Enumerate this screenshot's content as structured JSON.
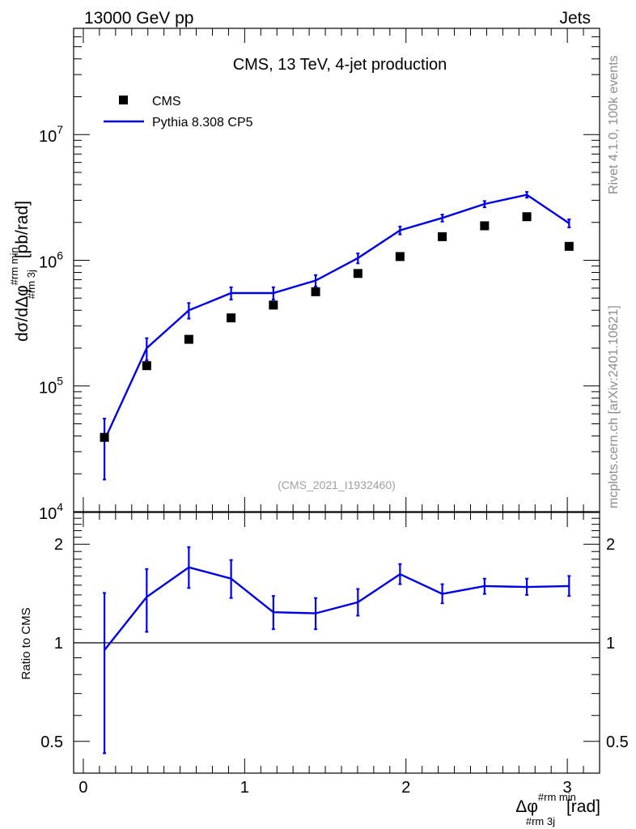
{
  "header": {
    "left": "13000 GeV pp",
    "right": "Jets"
  },
  "side": {
    "rivet": "Rivet 4.1.0,  100k events",
    "mcplots": "mcplots.cern.ch [arXiv:2401.10621]"
  },
  "colors": {
    "mc": "#0000e6",
    "data": "#000000",
    "side_text": "#8c8c8c",
    "watermark": "#a0a0a0"
  },
  "chart_data": [
    {
      "type": "scatter",
      "title": "CMS, 13 TeV, 4-jet production",
      "watermark": "(CMS_2021_I1932460)",
      "ylabel": "dσ/dΔφ^{#rm min}_{#rm 3j} [pb/rad]",
      "ylabel_parts": {
        "base": "dσ/dΔφ",
        "sup": "#rm min",
        "sub": "#rm 3j",
        "unit": "[pb/rad]"
      },
      "yscale": "log",
      "ylim": [
        10000,
        70000000
      ],
      "xlim": [
        -0.06,
        3.2
      ],
      "y_ticks": [
        {
          "value": 10000,
          "mantissa": "10",
          "exp": "4"
        },
        {
          "value": 100000,
          "mantissa": "10",
          "exp": "5"
        },
        {
          "value": 1000000,
          "mantissa": "10",
          "exp": "6"
        },
        {
          "value": 10000000,
          "mantissa": "10",
          "exp": "7"
        }
      ],
      "legend": [
        {
          "label": "CMS",
          "marker": "square"
        },
        {
          "label": "Pythia 8.308 CP5",
          "marker": "line"
        }
      ],
      "legend_position": "top-left",
      "series": [
        {
          "name": "CMS",
          "x": [
            0.131,
            0.393,
            0.654,
            0.916,
            1.178,
            1.44,
            1.702,
            1.963,
            2.225,
            2.487,
            2.749,
            3.011
          ],
          "values": [
            39000,
            145000,
            235000,
            348000,
            440000,
            562000,
            785000,
            1070000,
            1540000,
            1880000,
            2220000,
            1290000
          ]
        },
        {
          "name": "Pythia 8.308 CP5",
          "x": [
            0.131,
            0.393,
            0.654,
            0.916,
            1.178,
            1.44,
            1.702,
            1.963,
            2.225,
            2.487,
            2.749,
            3.011
          ],
          "values": [
            37000,
            200000,
            400000,
            548000,
            548000,
            690000,
            1040000,
            1730000,
            2170000,
            2800000,
            3320000,
            1970000
          ],
          "err_low": [
            19000,
            40000,
            57000,
            62000,
            62000,
            72000,
            95000,
            125000,
            140000,
            160000,
            175000,
            145000
          ],
          "err_high": [
            18000,
            40000,
            57000,
            62000,
            62000,
            72000,
            95000,
            125000,
            140000,
            160000,
            175000,
            145000
          ]
        }
      ]
    },
    {
      "type": "line",
      "ylabel": "Ratio to CMS",
      "xlabel": "Δφ^{#rm min}_{#rm 3j} [rad]",
      "xlabel_parts": {
        "base": "Δφ",
        "sup": "#rm min",
        "sub": "#rm 3j",
        "unit": "[rad]"
      },
      "yscale": "log",
      "ylim": [
        0.4,
        2.5
      ],
      "xlim": [
        -0.06,
        3.2
      ],
      "x_ticks": [
        {
          "value": 0,
          "label": "0"
        },
        {
          "value": 1,
          "label": "1"
        },
        {
          "value": 2,
          "label": "2"
        },
        {
          "value": 3,
          "label": "3"
        }
      ],
      "y_ticks": [
        {
          "value": 0.5,
          "label": "0.5"
        },
        {
          "value": 1,
          "label": "1"
        },
        {
          "value": 2,
          "label": "2"
        }
      ],
      "reference_line": 1,
      "series": [
        {
          "name": "Pythia 8.308 CP5 / CMS",
          "x": [
            0.131,
            0.393,
            0.654,
            0.916,
            1.178,
            1.44,
            1.702,
            1.963,
            2.225,
            2.487,
            2.749,
            3.011
          ],
          "values": [
            0.95,
            1.38,
            1.7,
            1.57,
            1.24,
            1.23,
            1.33,
            1.62,
            1.41,
            1.49,
            1.48,
            1.49
          ],
          "err_low": [
            0.49,
            0.3,
            0.23,
            0.2,
            0.14,
            0.13,
            0.12,
            0.11,
            0.09,
            0.08,
            0.08,
            0.1
          ],
          "err_high": [
            0.47,
            0.3,
            0.26,
            0.22,
            0.15,
            0.14,
            0.13,
            0.12,
            0.1,
            0.08,
            0.09,
            0.11
          ]
        }
      ]
    }
  ]
}
